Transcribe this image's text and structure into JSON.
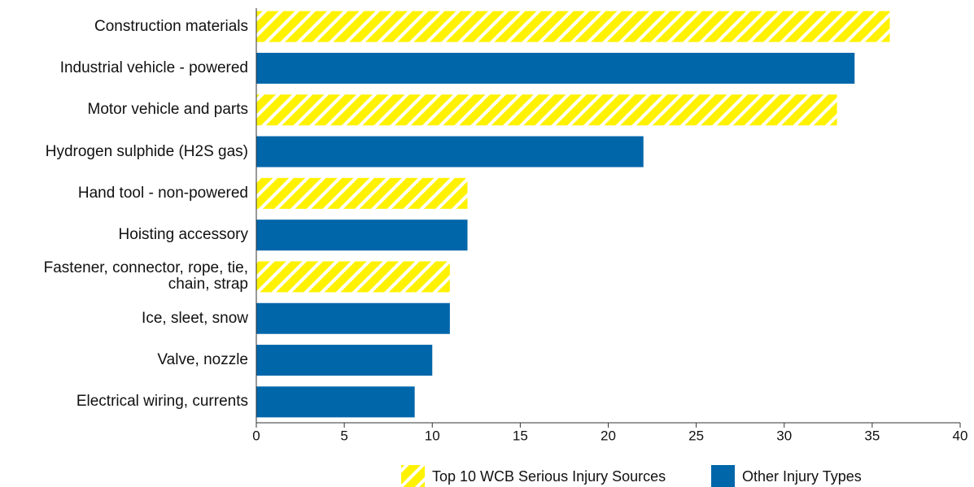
{
  "chart_data": {
    "type": "bar",
    "orientation": "horizontal",
    "categories": [
      "Construction materials",
      "Industrial vehicle - powered",
      "Motor vehicle and parts",
      "Hydrogen sulphide (H2S gas)",
      "Hand tool - non-powered",
      "Hoisting accessory",
      "Fastener, connector, rope, tie, chain, strap",
      "Ice, sleet, snow",
      "Valve, nozzle",
      "Electrical wiring, currents"
    ],
    "series": [
      {
        "name": "Top 10 WCB Serious Injury Sources",
        "color": "#fff200",
        "pattern": "hatch",
        "values": [
          36,
          null,
          33,
          null,
          12,
          null,
          11,
          null,
          null,
          null
        ]
      },
      {
        "name": "Other Injury Types",
        "color": "#0066aa",
        "values": [
          null,
          34,
          null,
          22,
          null,
          12,
          null,
          11,
          10,
          9
        ]
      }
    ],
    "xlim": [
      0,
      40
    ],
    "xticks": [
      0,
      5,
      10,
      15,
      20,
      25,
      30,
      35,
      40
    ],
    "grid": false,
    "legend": "bottom"
  }
}
